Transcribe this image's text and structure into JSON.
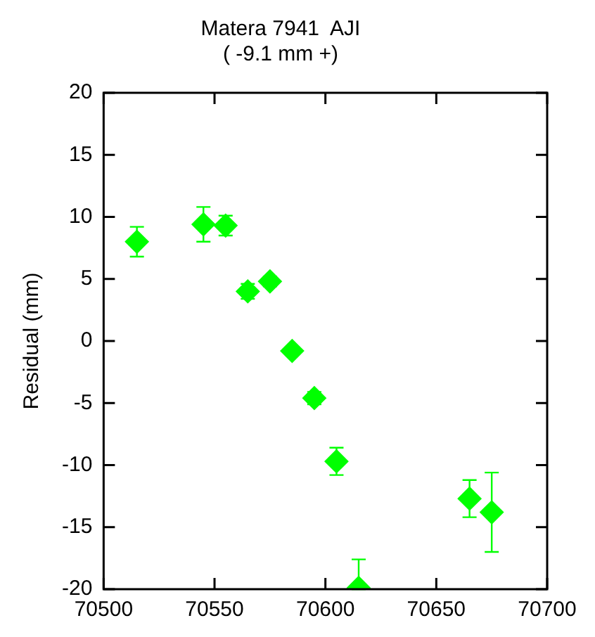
{
  "chart_data": {
    "type": "scatter",
    "title": "Matera 7941  AJI",
    "subtitle": "( -9.1 mm +)",
    "ylabel": "Residual (mm)",
    "x": [
      70515,
      70545,
      70555,
      70565,
      70575,
      70585,
      70595,
      70605,
      70615,
      70665,
      70675
    ],
    "series": [
      {
        "color": "#00ff00",
        "values": [
          8.0,
          9.4,
          9.3,
          4.0,
          4.8,
          -0.8,
          -4.6,
          -9.7,
          -19.9,
          -12.7,
          -13.8
        ],
        "errors": [
          1.2,
          1.4,
          0.8,
          0.6,
          0.4,
          0.3,
          0.5,
          1.1,
          [
            -20,
            -17.6
          ],
          1.5,
          3.2
        ]
      }
    ],
    "marker": "diamond",
    "grid": false,
    "legend": false,
    "xlim": [
      70500,
      70700
    ],
    "xticks": [
      70500,
      70550,
      70600,
      70650,
      70700
    ],
    "ylim": [
      -20,
      20
    ],
    "yticks": [
      -20,
      -15,
      -10,
      -5,
      0,
      5,
      10,
      15,
      20
    ]
  }
}
